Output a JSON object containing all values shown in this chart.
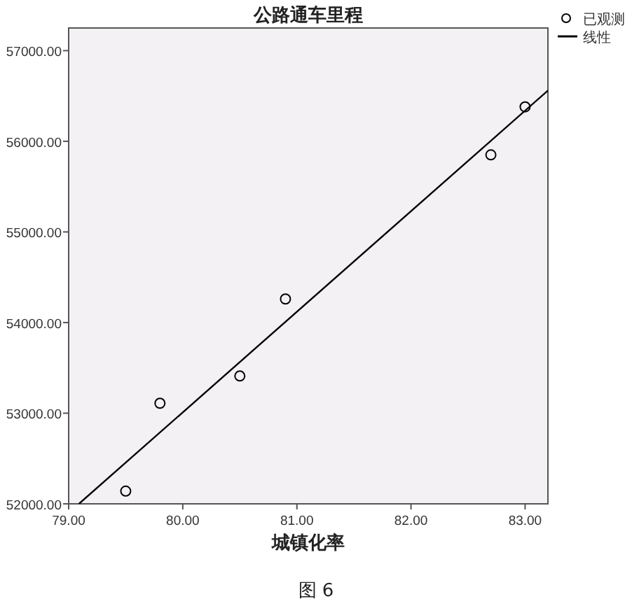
{
  "chart_data": {
    "type": "scatter",
    "title": "公路通车里程",
    "xlabel": "城镇化率",
    "annotations": [
      "图 6"
    ],
    "xlim": [
      79.0,
      83.2
    ],
    "ylim": [
      52000,
      57250
    ],
    "xticks": [
      {
        "value": 79,
        "label": "79.00"
      },
      {
        "value": 80,
        "label": "80.00"
      },
      {
        "value": 81,
        "label": "81.00"
      },
      {
        "value": 82,
        "label": "82.00"
      },
      {
        "value": 83,
        "label": "83.00"
      }
    ],
    "yticks": [
      {
        "value": 52000,
        "label": "52000.00"
      },
      {
        "value": 53000,
        "label": "53000.00"
      },
      {
        "value": 54000,
        "label": "54000.00"
      },
      {
        "value": 55000,
        "label": "55000.00"
      },
      {
        "value": 56000,
        "label": "56000.00"
      },
      {
        "value": 57000,
        "label": "57000.00"
      }
    ],
    "legend": "top right",
    "grid": false,
    "series": [
      {
        "name": "已观测",
        "marker": "circle",
        "color": "#000000",
        "x": [
          79.5,
          79.8,
          80.5,
          80.9,
          82.7,
          83.0
        ],
        "values": [
          52140,
          53110,
          53410,
          54260,
          55850,
          56380
        ]
      },
      {
        "name": "线性",
        "type": "line",
        "color": "#000000",
        "x": [
          79.09,
          83.2
        ],
        "values": [
          52000,
          56560
        ]
      }
    ]
  }
}
